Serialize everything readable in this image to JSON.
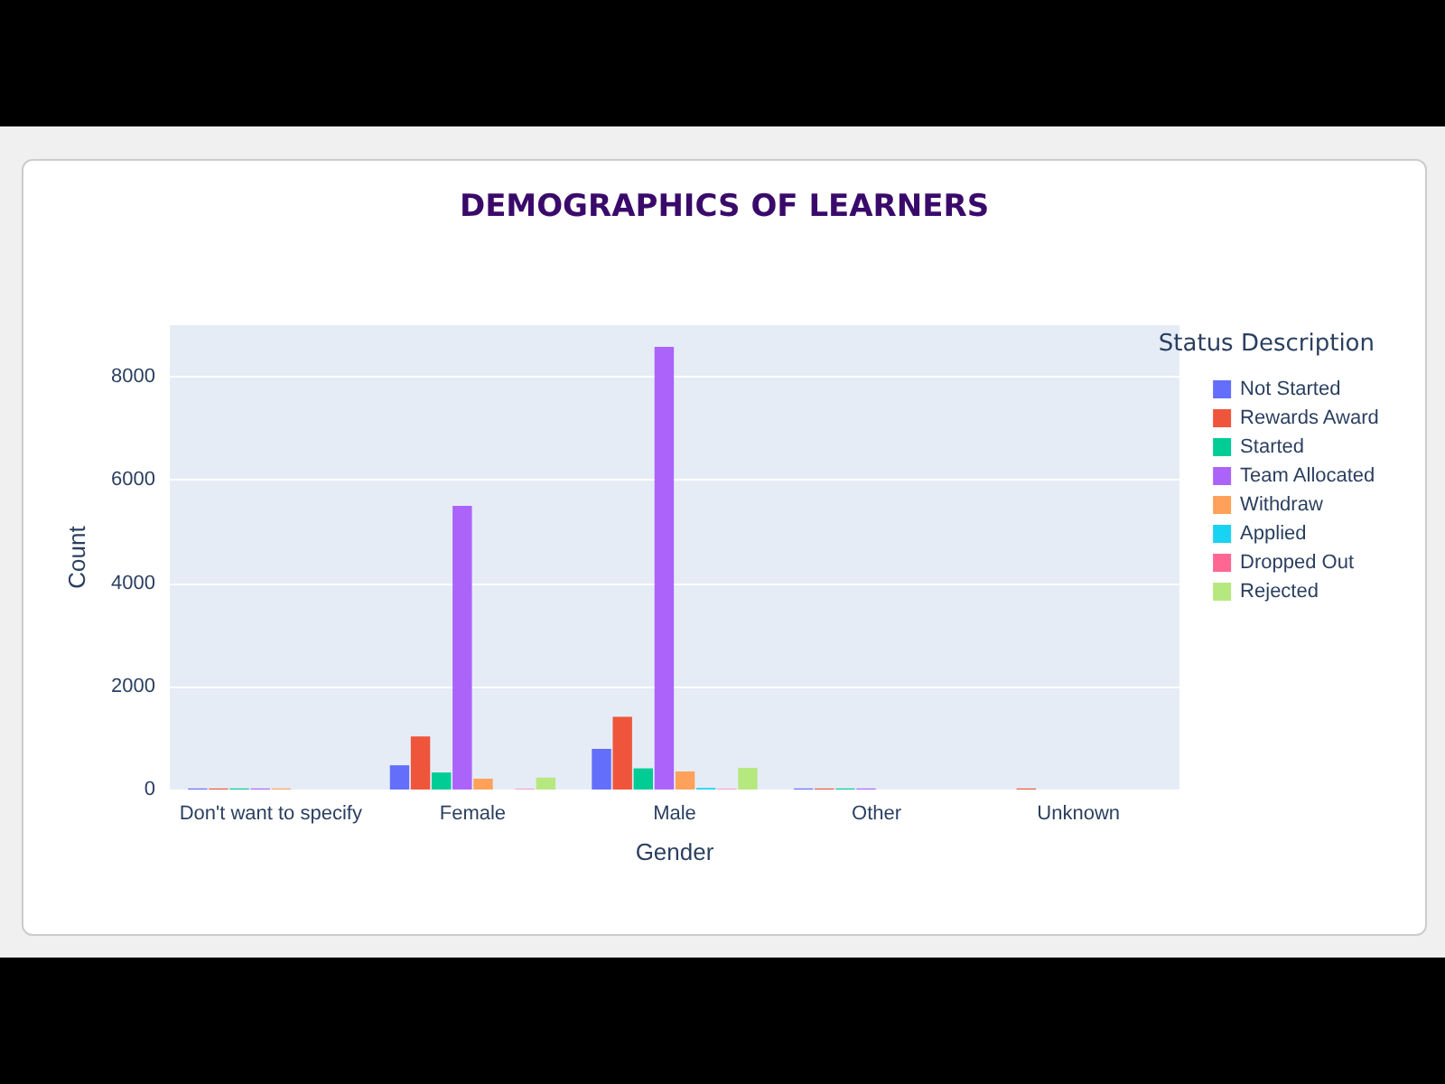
{
  "chart_data": {
    "type": "bar",
    "title": "DEMOGRAPHICS OF LEARNERS",
    "xlabel": "Gender",
    "ylabel": "Count",
    "legend_title": "Status Description",
    "categories": [
      "Don't want to specify",
      "Female",
      "Male",
      "Other",
      "Unknown"
    ],
    "series": [
      {
        "name": "Not Started",
        "color": "#636efa",
        "values": [
          20,
          470,
          790,
          20,
          0
        ]
      },
      {
        "name": "Rewards Award",
        "color": "#ef553b",
        "values": [
          20,
          1030,
          1410,
          20,
          20
        ]
      },
      {
        "name": "Started",
        "color": "#00cc96",
        "values": [
          20,
          330,
          410,
          20,
          0
        ]
      },
      {
        "name": "Team Allocated",
        "color": "#ab63fa",
        "values": [
          20,
          5500,
          8580,
          20,
          0
        ]
      },
      {
        "name": "Withdraw",
        "color": "#ffa15a",
        "values": [
          20,
          210,
          350,
          0,
          0
        ]
      },
      {
        "name": "Applied",
        "color": "#19d3f3",
        "values": [
          0,
          0,
          30,
          0,
          0
        ]
      },
      {
        "name": "Dropped Out",
        "color": "#ff6692",
        "values": [
          0,
          10,
          10,
          0,
          0
        ]
      },
      {
        "name": "Rejected",
        "color": "#b6e880",
        "values": [
          0,
          230,
          420,
          0,
          0
        ]
      }
    ],
    "ylim": [
      0,
      9000
    ],
    "yticks": [
      0,
      2000,
      4000,
      6000,
      8000
    ],
    "grid": "y",
    "legend": "right"
  }
}
